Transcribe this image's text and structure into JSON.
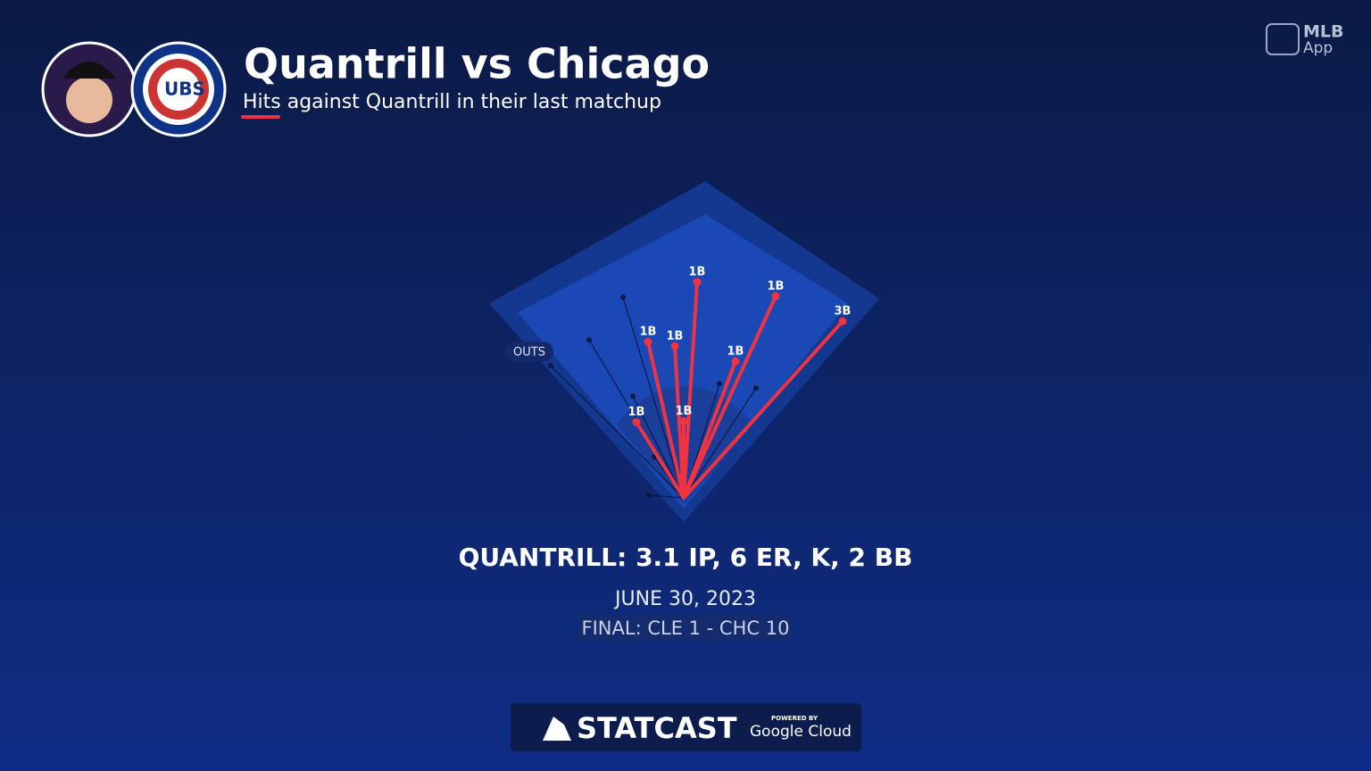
{
  "header": {
    "title": "Quantrill vs Chicago",
    "subtitle": "Hits against Quantrill in their last matchup",
    "team_logo": "UBS"
  },
  "logo": {
    "line1": "MLB",
    "line2": "App"
  },
  "field": {
    "outs_label": "OUTS",
    "hits": [
      "1B",
      "1B",
      "3B",
      "1B",
      "1B",
      "1B",
      "1B",
      "1B"
    ]
  },
  "summary": {
    "stat_line": "QUANTRILL: 3.1 IP, 6 ER, K, 2 BB",
    "date": "JUNE 30, 2023",
    "final": "FINAL: CLE 1 - CHC 10"
  },
  "footer": {
    "brand": "STATCAST",
    "powered_by": "POWERED BY",
    "partner": "Google Cloud"
  }
}
